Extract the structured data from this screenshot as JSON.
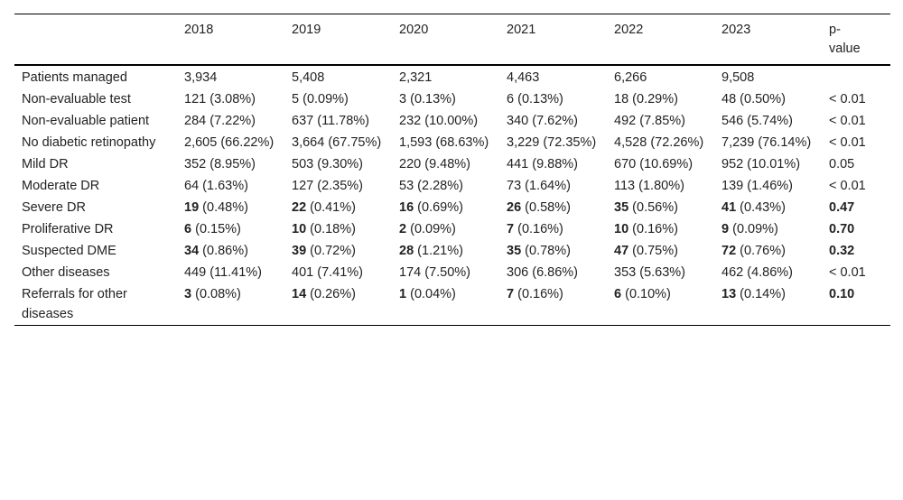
{
  "table": {
    "headers": [
      "",
      "2018",
      "2019",
      "2020",
      "2021",
      "2022",
      "2023",
      "p-\nvalue"
    ],
    "rows": [
      {
        "label": "Patients managed",
        "cells": [
          {
            "n": "3,934",
            "pct": "",
            "bold": false
          },
          {
            "n": "5,408",
            "pct": "",
            "bold": false
          },
          {
            "n": "2,321",
            "pct": "",
            "bold": false
          },
          {
            "n": "4,463",
            "pct": "",
            "bold": false
          },
          {
            "n": "6,266",
            "pct": "",
            "bold": false
          },
          {
            "n": "9,508",
            "pct": "",
            "bold": false
          }
        ],
        "p": "",
        "p_bold": false
      },
      {
        "label": "Non-evaluable test",
        "cells": [
          {
            "n": "121",
            "pct": "(3.08%)",
            "bold": false
          },
          {
            "n": "5",
            "pct": "(0.09%)",
            "bold": false
          },
          {
            "n": "3",
            "pct": "(0.13%)",
            "bold": false
          },
          {
            "n": "6",
            "pct": "(0.13%)",
            "bold": false
          },
          {
            "n": "18",
            "pct": "(0.29%)",
            "bold": false
          },
          {
            "n": "48",
            "pct": "(0.50%)",
            "bold": false
          }
        ],
        "p": "< 0.01",
        "p_bold": false
      },
      {
        "label": "Non-evaluable patient",
        "cells": [
          {
            "n": "284",
            "pct": "(7.22%)",
            "bold": false
          },
          {
            "n": "637",
            "pct": "(11.78%)",
            "bold": false
          },
          {
            "n": "232",
            "pct": "(10.00%)",
            "bold": false
          },
          {
            "n": "340",
            "pct": "(7.62%)",
            "bold": false
          },
          {
            "n": "492",
            "pct": "(7.85%)",
            "bold": false
          },
          {
            "n": "546",
            "pct": "(5.74%)",
            "bold": false
          }
        ],
        "p": "< 0.01",
        "p_bold": false
      },
      {
        "label": "No diabetic retinopathy",
        "cells": [
          {
            "n": "2,605",
            "pct": "(66.22%)",
            "bold": false
          },
          {
            "n": "3,664",
            "pct": "(67.75%)",
            "bold": false
          },
          {
            "n": "1,593",
            "pct": "(68.63%)",
            "bold": false
          },
          {
            "n": "3,229",
            "pct": "(72.35%)",
            "bold": false
          },
          {
            "n": "4,528",
            "pct": "(72.26%)",
            "bold": false
          },
          {
            "n": "7,239",
            "pct": "(76.14%)",
            "bold": false
          }
        ],
        "p": "< 0.01",
        "p_bold": false
      },
      {
        "label": "Mild DR",
        "cells": [
          {
            "n": "352",
            "pct": "(8.95%)",
            "bold": false
          },
          {
            "n": "503",
            "pct": "(9.30%)",
            "bold": false
          },
          {
            "n": "220",
            "pct": "(9.48%)",
            "bold": false
          },
          {
            "n": "441",
            "pct": "(9.88%)",
            "bold": false
          },
          {
            "n": "670",
            "pct": "(10.69%)",
            "bold": false
          },
          {
            "n": "952",
            "pct": "(10.01%)",
            "bold": false
          }
        ],
        "p": "0.05",
        "p_bold": false
      },
      {
        "label": "Moderate DR",
        "cells": [
          {
            "n": "64",
            "pct": "(1.63%)",
            "bold": false
          },
          {
            "n": "127",
            "pct": "(2.35%)",
            "bold": false
          },
          {
            "n": "53",
            "pct": "(2.28%)",
            "bold": false
          },
          {
            "n": "73",
            "pct": "(1.64%)",
            "bold": false
          },
          {
            "n": "113",
            "pct": "(1.80%)",
            "bold": false
          },
          {
            "n": "139",
            "pct": "(1.46%)",
            "bold": false
          }
        ],
        "p": "< 0.01",
        "p_bold": false
      },
      {
        "label": "Severe DR",
        "cells": [
          {
            "n": "19",
            "pct": "(0.48%)",
            "bold": true
          },
          {
            "n": "22",
            "pct": "(0.41%)",
            "bold": true
          },
          {
            "n": "16",
            "pct": "(0.69%)",
            "bold": true
          },
          {
            "n": "26",
            "pct": "(0.58%)",
            "bold": true
          },
          {
            "n": "35",
            "pct": "(0.56%)",
            "bold": true
          },
          {
            "n": "41",
            "pct": "(0.43%)",
            "bold": true
          }
        ],
        "p": "0.47",
        "p_bold": true
      },
      {
        "label": "Proliferative DR",
        "cells": [
          {
            "n": "6",
            "pct": "(0.15%)",
            "bold": true
          },
          {
            "n": "10",
            "pct": "(0.18%)",
            "bold": true
          },
          {
            "n": "2",
            "pct": "(0.09%)",
            "bold": true
          },
          {
            "n": "7",
            "pct": "(0.16%)",
            "bold": true
          },
          {
            "n": "10",
            "pct": "(0.16%)",
            "bold": true
          },
          {
            "n": "9",
            "pct": "(0.09%)",
            "bold": true
          }
        ],
        "p": "0.70",
        "p_bold": true
      },
      {
        "label": "Suspected DME",
        "cells": [
          {
            "n": "34",
            "pct": "(0.86%)",
            "bold": true
          },
          {
            "n": "39",
            "pct": "(0.72%)",
            "bold": true
          },
          {
            "n": "28",
            "pct": "(1.21%)",
            "bold": true
          },
          {
            "n": "35",
            "pct": "(0.78%)",
            "bold": true
          },
          {
            "n": "47",
            "pct": "(0.75%)",
            "bold": true
          },
          {
            "n": "72",
            "pct": "(0.76%)",
            "bold": true
          }
        ],
        "p": "0.32",
        "p_bold": true
      },
      {
        "label": "Other diseases",
        "cells": [
          {
            "n": "449",
            "pct": "(11.41%)",
            "bold": false
          },
          {
            "n": "401",
            "pct": "(7.41%)",
            "bold": false
          },
          {
            "n": "174",
            "pct": "(7.50%)",
            "bold": false
          },
          {
            "n": "306",
            "pct": "(6.86%)",
            "bold": false
          },
          {
            "n": "353",
            "pct": "(5.63%)",
            "bold": false
          },
          {
            "n": "462",
            "pct": "(4.86%)",
            "bold": false
          }
        ],
        "p": "< 0.01",
        "p_bold": false
      },
      {
        "label": "Referrals for other diseases",
        "cells": [
          {
            "n": "3",
            "pct": "(0.08%)",
            "bold": true
          },
          {
            "n": "14",
            "pct": "(0.26%)",
            "bold": true
          },
          {
            "n": "1",
            "pct": "(0.04%)",
            "bold": true
          },
          {
            "n": "7",
            "pct": "(0.16%)",
            "bold": true
          },
          {
            "n": "6",
            "pct": "(0.10%)",
            "bold": true
          },
          {
            "n": "13",
            "pct": "(0.14%)",
            "bold": true
          }
        ],
        "p": "0.10",
        "p_bold": true
      }
    ]
  }
}
